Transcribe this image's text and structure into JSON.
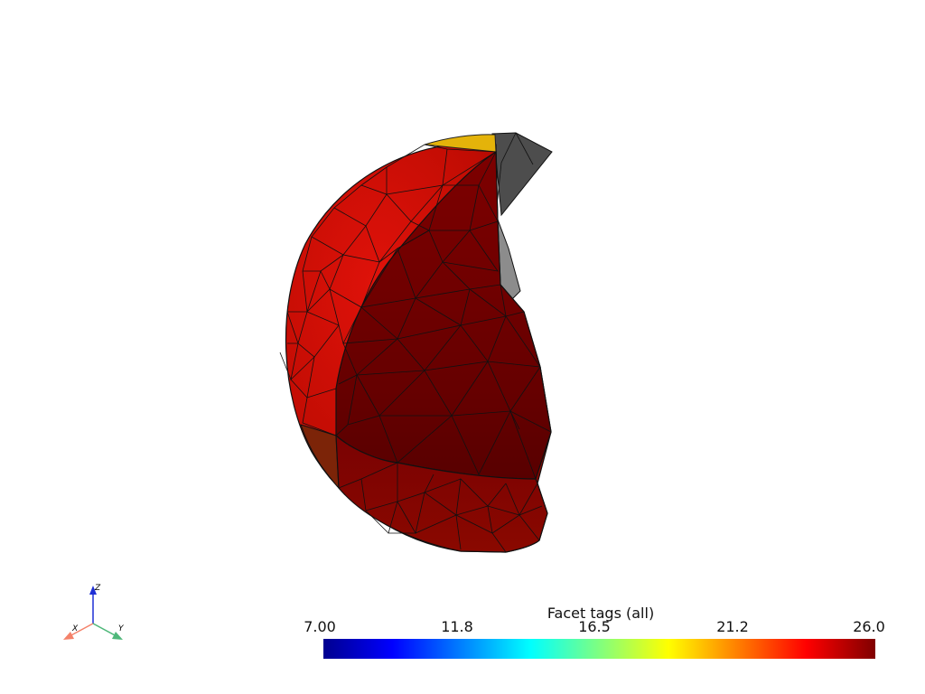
{
  "colorbar": {
    "title": "Facet tags (all)",
    "ticks": [
      "7.00",
      "11.8",
      "16.5",
      "21.2",
      "26.0"
    ],
    "min": 7.0,
    "max": 26.0,
    "colormap": "jet"
  },
  "axes_widget": {
    "x_label": "X",
    "y_label": "Y",
    "z_label": "Z",
    "x_color": "#f4826a",
    "y_color": "#4fb87a",
    "z_color": "#1f2fd6"
  },
  "mesh_colors": {
    "outer_bright": "#d40d04",
    "outer_mid": "#a90a02",
    "cut_face": "#780000",
    "cut_face_dark": "#5c0000",
    "top_cap": "#e8b80c",
    "grey_tag": "#555555",
    "grey_tag_light": "#8a8a8a",
    "rim_orange": "#7a2208"
  }
}
